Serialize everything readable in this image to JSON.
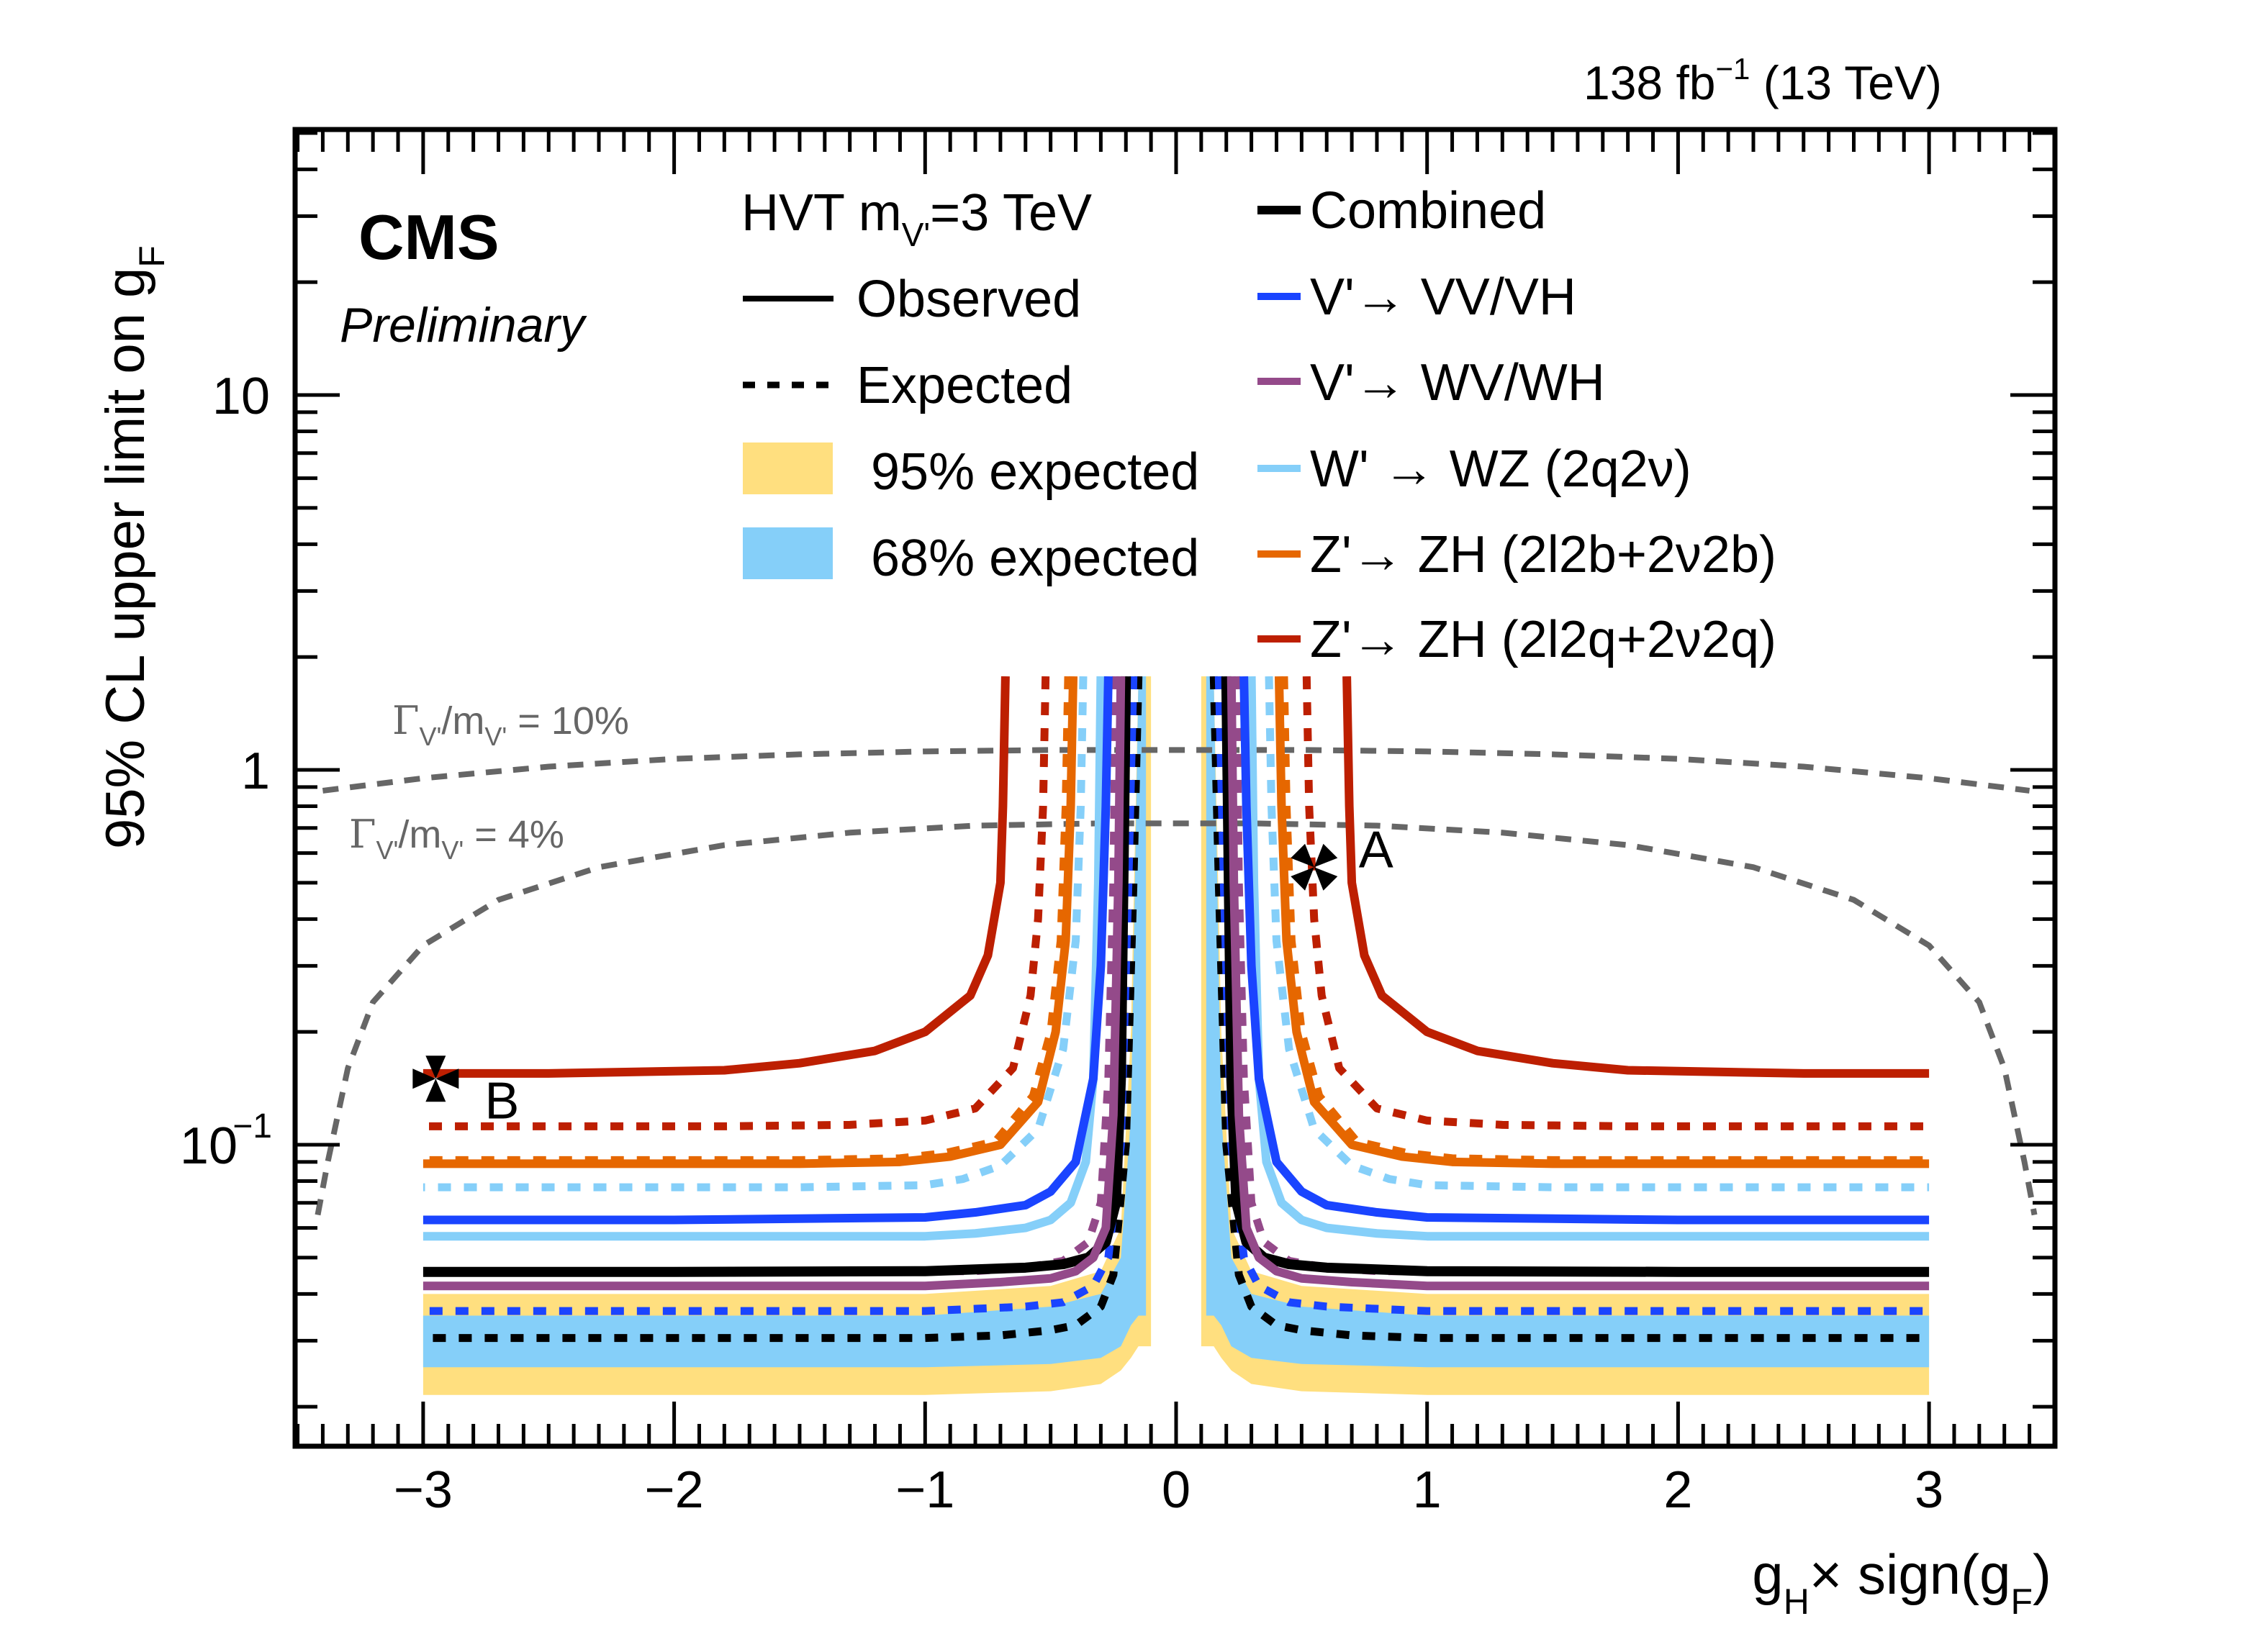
{
  "chart_data": {
    "type": "line",
    "lumi_label": "138 fb",
    "lumi_sup": "−1",
    "energy_label": "(13 TeV)",
    "experiment": "CMS",
    "status": "Preliminary",
    "xlabel": {
      "base": "g",
      "sub": "H",
      "mid": "× sign(g",
      "sub2": "F",
      "end": ")"
    },
    "ylabel": {
      "text": "95% CL upper limit on g",
      "sub": "F"
    },
    "xlim": [
      -3.5,
      3.5
    ],
    "ylim": [
      0.024,
      51
    ],
    "yscale": "log",
    "x_ticks": [
      {
        "v": -3,
        "label": "−3"
      },
      {
        "v": -2,
        "label": "−2"
      },
      {
        "v": -1,
        "label": "−1"
      },
      {
        "v": 0,
        "label": "0"
      },
      {
        "v": 1,
        "label": "1"
      },
      {
        "v": 2,
        "label": "2"
      },
      {
        "v": 3,
        "label": "3"
      }
    ],
    "y_ticks": [
      {
        "v": 10,
        "label": "10",
        "sup": ""
      },
      {
        "v": 1,
        "label": "1",
        "sup": ""
      },
      {
        "v": 0.1,
        "label": "10",
        "sup": "−1"
      }
    ],
    "legend_header": {
      "text": "HVT m",
      "sub": "V'",
      "rest": "=3 TeV"
    },
    "legend_left": [
      {
        "label": "Observed",
        "style": "solid",
        "color": "#000000"
      },
      {
        "label": "Expected",
        "style": "dashed",
        "color": "#000000"
      },
      {
        "label": "95% expected",
        "style": "box",
        "color": "#FFDF7F"
      },
      {
        "label": "68% expected",
        "style": "box",
        "color": "#85CFF9"
      }
    ],
    "legend_right": [
      {
        "label": "Combined",
        "color": "#000000"
      },
      {
        "label": "V'→ VV/VH",
        "color": "#1A44FF"
      },
      {
        "label": "V'→ WV/WH",
        "color": "#944A8A"
      },
      {
        "label": "W' → WZ (2q2ν)",
        "color": "#85CFF9"
      },
      {
        "label": "Z'→ ZH (2l2b+2ν2b)",
        "color": "#E66700"
      },
      {
        "label": "Z'→ ZH (2l2q+2ν2q)",
        "color": "#BD1F01"
      }
    ],
    "width_curves": [
      {
        "label_main": "Γ",
        "label_sub": "V'",
        "label_mid": "/m",
        "label_sub2": "V'",
        "label_end": " = 10%",
        "color": "#666666",
        "x": [
          -3.4,
          -3.0,
          -2.5,
          -2.0,
          -1.5,
          -1.0,
          -0.5,
          0,
          0.5,
          1.0,
          1.5,
          2.0,
          2.5,
          3.0,
          3.4
        ],
        "y": [
          0.88,
          0.95,
          1.02,
          1.07,
          1.1,
          1.12,
          1.13,
          1.13,
          1.13,
          1.12,
          1.1,
          1.07,
          1.02,
          0.95,
          0.88
        ]
      },
      {
        "label_main": "Γ",
        "label_sub": "V'",
        "label_mid": "/m",
        "label_sub2": "V'",
        "label_end": " = 4%",
        "color": "#666666",
        "x": [
          -3.42,
          -3.38,
          -3.3,
          -3.2,
          -3.0,
          -2.7,
          -2.3,
          -1.8,
          -1.3,
          -0.8,
          -0.3,
          0,
          0.3,
          0.8,
          1.3,
          1.8,
          2.3,
          2.7,
          3.0,
          3.2,
          3.3,
          3.38,
          3.42
        ],
        "y": [
          0.065,
          0.09,
          0.16,
          0.24,
          0.34,
          0.45,
          0.55,
          0.63,
          0.68,
          0.71,
          0.72,
          0.72,
          0.72,
          0.71,
          0.68,
          0.63,
          0.55,
          0.45,
          0.34,
          0.24,
          0.16,
          0.09,
          0.065
        ]
      }
    ],
    "band95": {
      "x": [
        -3.0,
        -1.0,
        -0.5,
        -0.3,
        -0.22,
        -0.18,
        -0.15,
        -0.1,
        0.1,
        0.15,
        0.18,
        0.22,
        0.3,
        0.5,
        1.0,
        3.0
      ],
      "lo": [
        0.0215,
        0.0215,
        0.022,
        0.023,
        0.025,
        0.027,
        0.029,
        0.029,
        0.029,
        0.029,
        0.027,
        0.025,
        0.023,
        0.022,
        0.0215,
        0.0215
      ],
      "hi": [
        0.04,
        0.04,
        0.042,
        0.046,
        0.06,
        0.2,
        3.0,
        3.0,
        3.0,
        3.0,
        0.2,
        0.06,
        0.046,
        0.042,
        0.04,
        0.04
      ]
    },
    "band68": {
      "x": [
        -3.0,
        -1.0,
        -0.5,
        -0.3,
        -0.22,
        -0.18,
        -0.15,
        -0.12,
        0.12,
        0.15,
        0.18,
        0.22,
        0.3,
        0.5,
        1.0,
        3.0
      ],
      "lo": [
        0.0255,
        0.0255,
        0.026,
        0.027,
        0.029,
        0.033,
        0.035,
        0.035,
        0.035,
        0.035,
        0.033,
        0.029,
        0.027,
        0.026,
        0.0255,
        0.0255
      ],
      "hi": [
        0.035,
        0.035,
        0.037,
        0.04,
        0.05,
        0.12,
        3.0,
        3.0,
        3.0,
        3.0,
        0.12,
        0.05,
        0.04,
        0.037,
        0.035,
        0.035
      ]
    },
    "series": [
      {
        "name": "Combined expected",
        "color": "#000000",
        "style": "dashed",
        "x_abs": [
          0.15,
          0.17,
          0.2,
          0.25,
          0.3,
          0.4,
          0.5,
          0.7,
          1.0,
          2.0,
          3.0
        ],
        "y": [
          3.0,
          0.5,
          0.1,
          0.045,
          0.037,
          0.033,
          0.032,
          0.031,
          0.0305,
          0.0305,
          0.0305
        ]
      },
      {
        "name": "V'→VV/VH expected",
        "color": "#1A44FF",
        "style": "dashed",
        "x_abs": [
          0.17,
          0.19,
          0.22,
          0.27,
          0.33,
          0.45,
          0.6,
          0.8,
          1.0,
          2.0,
          3.0
        ],
        "y": [
          3.0,
          0.5,
          0.1,
          0.05,
          0.042,
          0.038,
          0.037,
          0.0365,
          0.036,
          0.036,
          0.036
        ]
      },
      {
        "name": "V'→WV/WH expected",
        "color": "#944A8A",
        "style": "dashed",
        "x_abs": [
          0.24,
          0.25,
          0.27,
          0.3,
          0.35,
          0.45,
          0.6,
          0.8,
          1.0,
          2.0,
          3.0
        ],
        "y": [
          3.0,
          0.5,
          0.15,
          0.07,
          0.055,
          0.049,
          0.047,
          0.046,
          0.046,
          0.046,
          0.046
        ]
      },
      {
        "name": "Combined observed",
        "color": "#000000",
        "style": "solid",
        "x_abs": [
          0.2,
          0.21,
          0.22,
          0.24,
          0.28,
          0.35,
          0.45,
          0.6,
          1.0,
          2.0,
          3.0
        ],
        "y": [
          3.0,
          0.5,
          0.15,
          0.07,
          0.055,
          0.05,
          0.048,
          0.047,
          0.046,
          0.0458,
          0.0458
        ]
      },
      {
        "name": "V'→WV/WH observed",
        "color": "#944A8A",
        "style": "solid",
        "x_abs": [
          0.22,
          0.23,
          0.25,
          0.28,
          0.33,
          0.4,
          0.5,
          0.7,
          1.0,
          2.0,
          3.0
        ],
        "y": [
          3.0,
          0.5,
          0.12,
          0.06,
          0.05,
          0.046,
          0.044,
          0.043,
          0.042,
          0.042,
          0.042
        ]
      },
      {
        "name": "W'→WZ observed",
        "color": "#85CFF9",
        "style": "solid",
        "x_abs": [
          0.3,
          0.31,
          0.33,
          0.36,
          0.42,
          0.5,
          0.6,
          0.8,
          1.0,
          2.0,
          3.0
        ],
        "y": [
          3.0,
          0.5,
          0.15,
          0.09,
          0.07,
          0.063,
          0.06,
          0.058,
          0.057,
          0.057,
          0.057
        ]
      },
      {
        "name": "V'→VV/VH observed",
        "color": "#1A44FF",
        "style": "solid",
        "x_abs": [
          0.27,
          0.28,
          0.3,
          0.33,
          0.4,
          0.5,
          0.6,
          0.8,
          1.0,
          2.0,
          3.0
        ],
        "y": [
          3.0,
          0.8,
          0.3,
          0.15,
          0.09,
          0.075,
          0.069,
          0.066,
          0.064,
          0.063,
          0.063
        ]
      },
      {
        "name": "W'→WZ expected",
        "color": "#85CFF9",
        "style": "dashed",
        "x_abs": [
          0.37,
          0.38,
          0.4,
          0.45,
          0.55,
          0.7,
          0.85,
          1.0,
          1.5,
          2.0,
          3.0
        ],
        "y": [
          3.0,
          0.8,
          0.35,
          0.18,
          0.11,
          0.088,
          0.081,
          0.078,
          0.077,
          0.077,
          0.077
        ]
      },
      {
        "name": "Z'→ZH(2l2b+2ν2b) observed",
        "color": "#E66700",
        "style": "solid",
        "x_abs": [
          0.41,
          0.42,
          0.44,
          0.48,
          0.55,
          0.7,
          0.9,
          1.1,
          1.5,
          2.0,
          3.0
        ],
        "y": [
          3.0,
          0.8,
          0.35,
          0.2,
          0.13,
          0.1,
          0.093,
          0.09,
          0.089,
          0.089,
          0.089
        ]
      },
      {
        "name": "Z'→ZH(2l2b+2ν2b) expected",
        "color": "#E66700",
        "style": "dashed",
        "x_abs": [
          0.43,
          0.44,
          0.46,
          0.5,
          0.57,
          0.72,
          0.92,
          1.1,
          1.5,
          2.0,
          3.0
        ],
        "y": [
          3.0,
          0.8,
          0.35,
          0.2,
          0.135,
          0.102,
          0.095,
          0.092,
          0.091,
          0.091,
          0.091
        ]
      },
      {
        "name": "Z'→ZH(2l2q+2ν2q) expected",
        "color": "#BD1F01",
        "style": "dashed",
        "x_abs": [
          0.52,
          0.53,
          0.55,
          0.58,
          0.65,
          0.8,
          1.0,
          1.3,
          1.8,
          2.5,
          3.0
        ],
        "y": [
          3.0,
          0.8,
          0.4,
          0.25,
          0.16,
          0.125,
          0.116,
          0.113,
          0.112,
          0.112,
          0.112
        ]
      },
      {
        "name": "Z'→ZH(2l2q+2ν2q) observed",
        "color": "#BD1F01",
        "style": "solid",
        "x_abs": [
          0.68,
          0.69,
          0.7,
          0.75,
          0.82,
          1.0,
          1.2,
          1.5,
          1.8,
          2.5,
          3.0
        ],
        "y": [
          3.0,
          0.8,
          0.5,
          0.32,
          0.25,
          0.2,
          0.178,
          0.165,
          0.158,
          0.155,
          0.155
        ]
      }
    ],
    "benchmarks": [
      {
        "label": "A",
        "x": 0.55,
        "y": 0.55,
        "marker": "star-x"
      },
      {
        "label": "B",
        "x": -2.95,
        "y": 0.15,
        "marker": "star-plus"
      }
    ]
  }
}
